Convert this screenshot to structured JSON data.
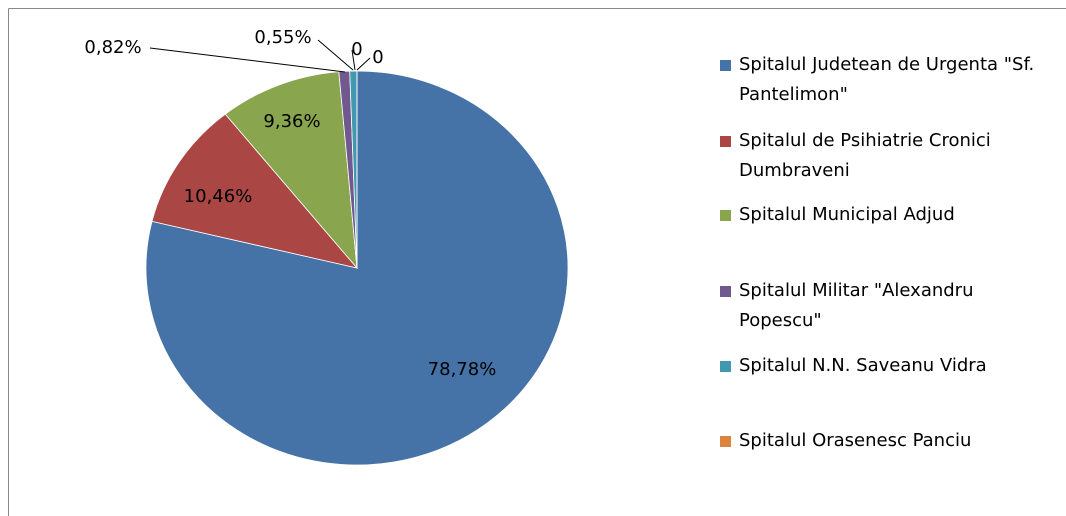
{
  "chart_data": {
    "type": "pie",
    "categories": [
      "Spitalul Judetean de Urgenta \"Sf. Pantelimon\"",
      "Spitalul de Psihiatrie Cronici Dumbraveni",
      "Spitalul Municipal Adjud",
      "Spitalul Militar \"Alexandru Popescu\"",
      "Spitalul N.N. Saveanu Vidra",
      "Spitalul Orasenesc Panciu",
      null
    ],
    "values": [
      78.78,
      10.46,
      9.36,
      0.82,
      0.55,
      0,
      0
    ],
    "value_labels": [
      "78,78%",
      "10,46%",
      "9,36%",
      "0,82%",
      "0,55%",
      "0",
      "0"
    ],
    "colors": [
      "#4572a7",
      "#aa4643",
      "#89a54e",
      "#71588f",
      "#4198af",
      "#db843d",
      "#2c4d75"
    ],
    "legend": "right"
  }
}
